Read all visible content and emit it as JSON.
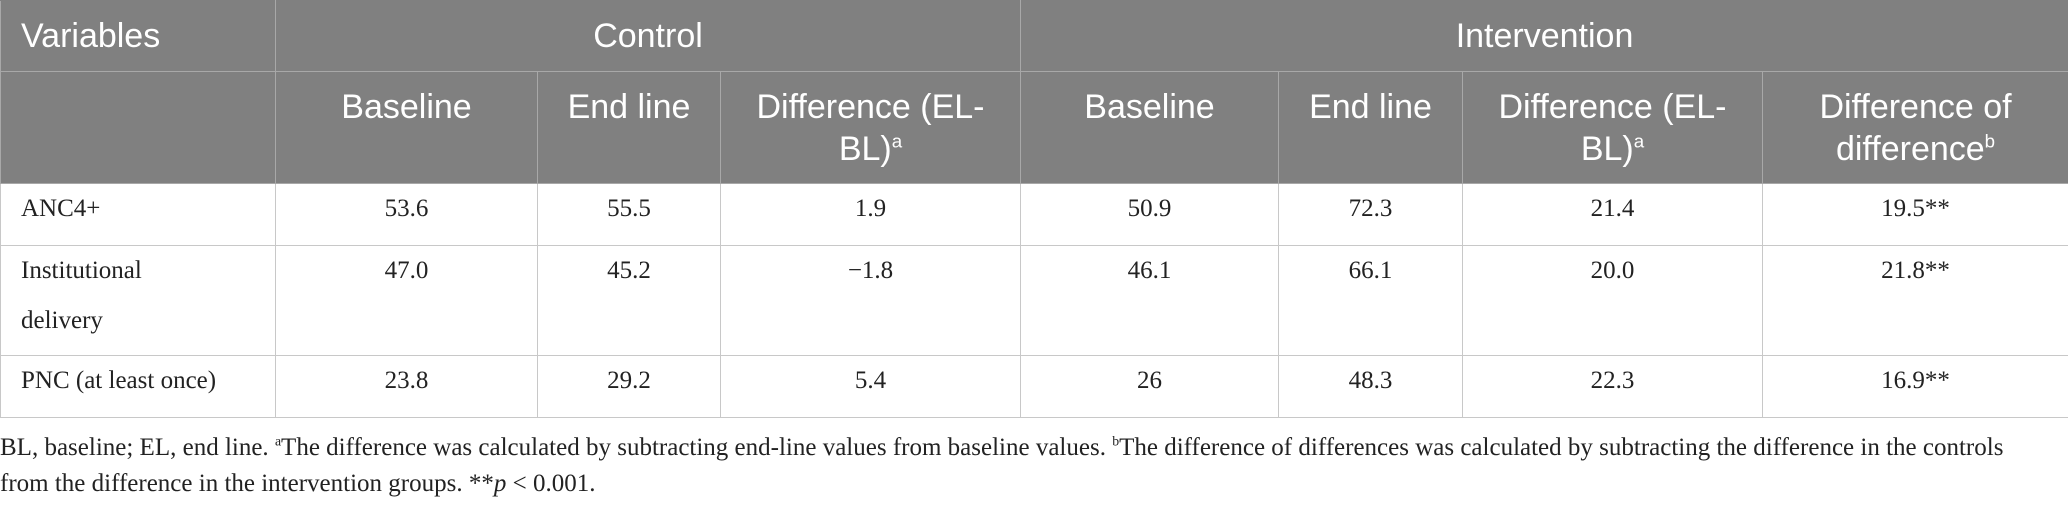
{
  "table": {
    "header_row1": {
      "variables": "Variables",
      "control": "Control",
      "intervention": "Intervention"
    },
    "header_row2": {
      "control_baseline": "Baseline",
      "control_endline": "End line",
      "control_difference": "Difference (EL-BL)",
      "control_difference_sup": "a",
      "intervention_baseline": "Baseline",
      "intervention_endline": "End line",
      "intervention_difference": "Difference (EL-BL)",
      "intervention_difference_sup": "a",
      "diff_of_diff": "Difference of difference",
      "diff_of_diff_sup": "b"
    },
    "rows": [
      {
        "variable": "ANC4+",
        "c_baseline": "53.6",
        "c_endline": "55.5",
        "c_diff": "1.9",
        "i_baseline": "50.9",
        "i_endline": "72.3",
        "i_diff": "21.4",
        "dod": "19.5**"
      },
      {
        "variable": "Institutional delivery",
        "c_baseline": "47.0",
        "c_endline": "45.2",
        "c_diff": "−1.8",
        "i_baseline": "46.1",
        "i_endline": "66.1",
        "i_diff": "20.0",
        "dod": "21.8**"
      },
      {
        "variable": "PNC (at least once)",
        "c_baseline": "23.8",
        "c_endline": "29.2",
        "c_diff": "5.4",
        "i_baseline": "26",
        "i_endline": "48.3",
        "i_diff": "22.3",
        "dod": "16.9**"
      }
    ]
  },
  "footnote": {
    "abbrev": "BL, baseline; EL, end line. ",
    "a_sup": "a",
    "a_text": "The difference was calculated by subtracting end-line values from baseline values. ",
    "b_sup": "b",
    "b_text": "The difference of differences was calculated by subtracting the difference in the controls from the difference in the intervention groups. ",
    "sig_stars": "**",
    "sig_p": "p",
    "sig_rest": " < 0.001."
  }
}
